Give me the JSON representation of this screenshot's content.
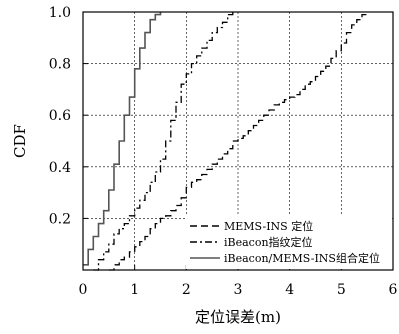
{
  "chart_data": {
    "type": "line",
    "xlabel": "定位误差(m)",
    "ylabel": "CDF",
    "xlim": [
      0,
      6
    ],
    "ylim": [
      0,
      1
    ],
    "xticks": [
      "0",
      "1",
      "2",
      "3",
      "4",
      "5",
      "6"
    ],
    "yticks": [
      "0.2",
      "0.4",
      "0.6",
      "0.8",
      "1.0"
    ],
    "grid": true,
    "legend_position": "bottom-right",
    "series": [
      {
        "name": "MEMS-INS 定位",
        "style": "dashed",
        "color": "#000000",
        "x": [
          0.5,
          0.6,
          0.7,
          0.8,
          0.9,
          1.0,
          1.1,
          1.2,
          1.3,
          1.4,
          1.5,
          1.6,
          1.7,
          1.8,
          1.9,
          2.0,
          2.1,
          2.2,
          2.3,
          2.4,
          2.5,
          2.6,
          2.7,
          2.8,
          2.9,
          3.0,
          3.1,
          3.2,
          3.3,
          3.4,
          3.5,
          3.6,
          3.7,
          3.8,
          3.9,
          4.0,
          4.1,
          4.2,
          4.3,
          4.4,
          4.5,
          4.6,
          4.7,
          4.8,
          4.9,
          5.0,
          5.1,
          5.2,
          5.3,
          5.4,
          5.5
        ],
        "y": [
          0.0,
          0.02,
          0.04,
          0.05,
          0.07,
          0.09,
          0.11,
          0.13,
          0.16,
          0.18,
          0.2,
          0.21,
          0.23,
          0.25,
          0.28,
          0.32,
          0.34,
          0.35,
          0.37,
          0.39,
          0.41,
          0.43,
          0.45,
          0.47,
          0.5,
          0.51,
          0.52,
          0.54,
          0.56,
          0.58,
          0.6,
          0.62,
          0.64,
          0.65,
          0.66,
          0.67,
          0.68,
          0.7,
          0.72,
          0.73,
          0.75,
          0.77,
          0.79,
          0.82,
          0.85,
          0.88,
          0.92,
          0.95,
          0.97,
          0.99,
          1.0
        ]
      },
      {
        "name": "iBeacon指纹定位",
        "style": "dashdot",
        "color": "#000000",
        "x": [
          0.2,
          0.3,
          0.4,
          0.5,
          0.6,
          0.7,
          0.8,
          0.9,
          1.0,
          1.1,
          1.2,
          1.3,
          1.4,
          1.5,
          1.6,
          1.7,
          1.8,
          1.9,
          2.0,
          2.1,
          2.2,
          2.3,
          2.4,
          2.5,
          2.6,
          2.7,
          2.8,
          2.9
        ],
        "y": [
          0.0,
          0.04,
          0.07,
          0.1,
          0.14,
          0.16,
          0.18,
          0.21,
          0.24,
          0.27,
          0.3,
          0.34,
          0.38,
          0.43,
          0.5,
          0.58,
          0.65,
          0.72,
          0.76,
          0.8,
          0.83,
          0.86,
          0.89,
          0.92,
          0.94,
          0.96,
          0.99,
          1.0
        ]
      },
      {
        "name": "iBeacon/MEMS-INS组合定位",
        "style": "solid",
        "color": "#555555",
        "x": [
          0.0,
          0.1,
          0.2,
          0.3,
          0.4,
          0.5,
          0.6,
          0.7,
          0.8,
          0.9,
          1.0,
          1.1,
          1.2,
          1.3,
          1.4,
          1.5
        ],
        "y": [
          0.02,
          0.08,
          0.13,
          0.18,
          0.23,
          0.31,
          0.41,
          0.5,
          0.6,
          0.67,
          0.78,
          0.86,
          0.92,
          0.97,
          0.99,
          1.0
        ]
      }
    ]
  }
}
